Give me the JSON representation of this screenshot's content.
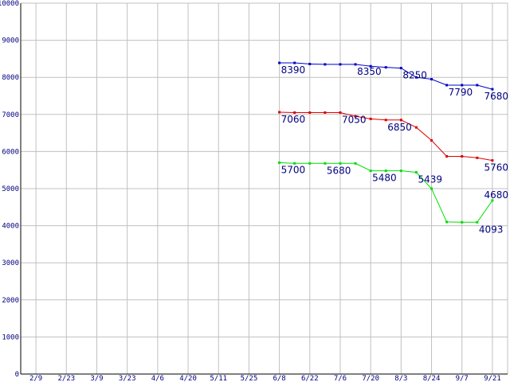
{
  "chart_data": {
    "type": "line",
    "grid": true,
    "legend": "none",
    "x_ticks": [
      "2/9",
      "2/23",
      "3/9",
      "3/23",
      "4/6",
      "4/20",
      "5/11",
      "5/25",
      "6/8",
      "6/22",
      "7/6",
      "7/20",
      "8/3",
      "8/24",
      "9/7",
      "9/21"
    ],
    "y_ticks": [
      "0",
      "1000",
      "2000",
      "3000",
      "4000",
      "5000",
      "6000",
      "7000",
      "8000",
      "9000",
      "10000"
    ],
    "ylim": [
      0,
      10000
    ],
    "series": [
      {
        "color": "#0000cc",
        "x": [
          8,
          8.5,
          9,
          9.5,
          10,
          10.5,
          11,
          11.5,
          12,
          12.5,
          13,
          13.5,
          14,
          14.5,
          15
        ],
        "values": [
          8390,
          8390,
          8360,
          8350,
          8350,
          8350,
          8300,
          8270,
          8250,
          8000,
          7950,
          7790,
          7790,
          7790,
          7680
        ],
        "labels": [
          {
            "i": 0,
            "text": "8390",
            "pos": "below"
          },
          {
            "i": 5,
            "text": "8350",
            "pos": "below"
          },
          {
            "i": 8,
            "text": "8250",
            "pos": "below"
          },
          {
            "i": 11,
            "text": "7790",
            "pos": "below"
          },
          {
            "i": 14,
            "text": "7680",
            "pos": "below"
          }
        ]
      },
      {
        "color": "#dd0000",
        "x": [
          8,
          8.5,
          9,
          9.5,
          10,
          10.5,
          11,
          11.5,
          12,
          12.5,
          13,
          13.5,
          14,
          14.5,
          15
        ],
        "values": [
          7060,
          7050,
          7050,
          7050,
          7050,
          6950,
          6880,
          6850,
          6850,
          6650,
          6300,
          5870,
          5870,
          5830,
          5760
        ],
        "labels": [
          {
            "i": 0,
            "text": "7060",
            "pos": "below"
          },
          {
            "i": 4,
            "text": "7050",
            "pos": "below"
          },
          {
            "i": 7,
            "text": "6850",
            "pos": "below"
          },
          {
            "i": 14,
            "text": "5760",
            "pos": "below"
          }
        ]
      },
      {
        "color": "#00dd00",
        "x": [
          8,
          8.5,
          9,
          9.5,
          10,
          10.5,
          11,
          11.5,
          12,
          12.5,
          13,
          13.5,
          14,
          14.5,
          15
        ],
        "values": [
          5700,
          5680,
          5680,
          5680,
          5680,
          5680,
          5480,
          5480,
          5480,
          5439,
          5000,
          4100,
          4093,
          4093,
          4680
        ],
        "labels": [
          {
            "i": 0,
            "text": "5700",
            "pos": "below"
          },
          {
            "i": 3,
            "text": "5680",
            "pos": "below"
          },
          {
            "i": 6,
            "text": "5480",
            "pos": "below"
          },
          {
            "i": 9,
            "text": "5439",
            "pos": "below"
          },
          {
            "i": 13,
            "text": "4093",
            "pos": "below"
          },
          {
            "i": 14,
            "text": "4680",
            "pos": "above"
          }
        ]
      }
    ]
  }
}
